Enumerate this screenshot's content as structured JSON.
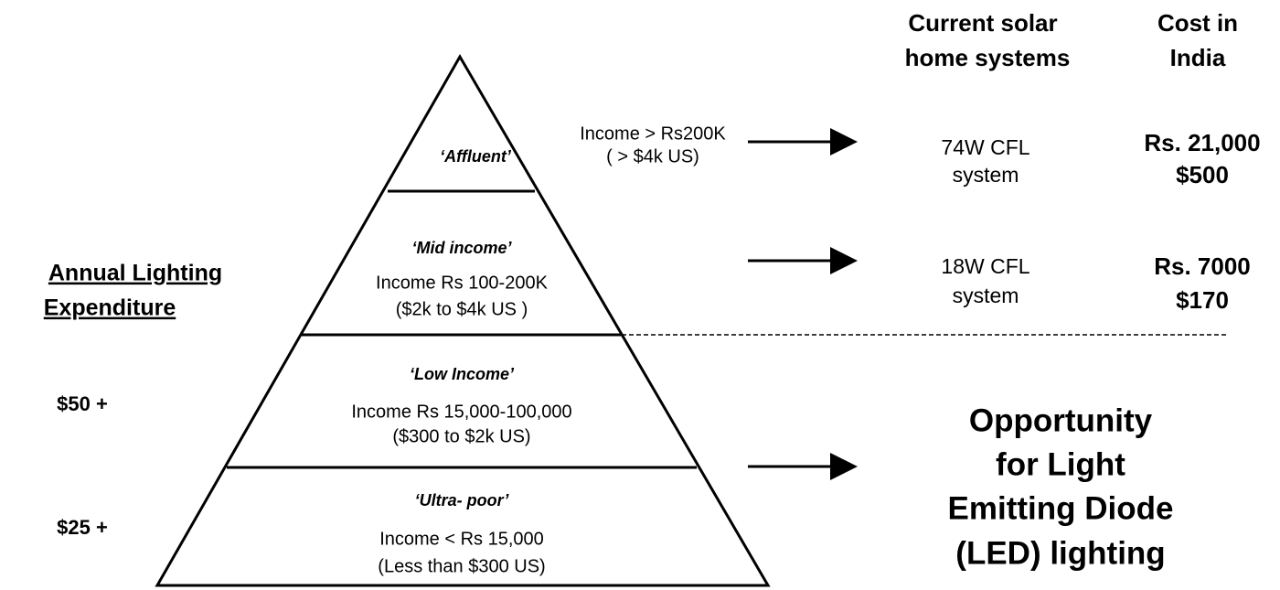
{
  "headers": {
    "system": [
      "Current solar",
      "home systems"
    ],
    "cost": [
      "Cost in",
      "India"
    ]
  },
  "levels": [
    {
      "name": "‘Affluent’",
      "income": [
        "Income > Rs200K",
        "( > $4k US)"
      ]
    },
    {
      "name": "‘Mid income’",
      "income": [
        "Income Rs 100-200K",
        "($2k to $4k US )"
      ]
    },
    {
      "name": "‘Low Income’",
      "income": [
        "Income Rs 15,000-100,000",
        "($300 to $2k US)"
      ]
    },
    {
      "name": "‘Ultra- poor’",
      "income": [
        "Income < Rs 15,000",
        "(Less than $300 US)"
      ]
    }
  ],
  "systems": [
    {
      "system": [
        "74W CFL",
        "system"
      ],
      "cost": [
        "Rs. 21,000",
        "$500"
      ]
    },
    {
      "system": [
        "18W CFL",
        "system"
      ],
      "cost": [
        "Rs. 7000",
        "$170"
      ]
    }
  ],
  "expenditure": {
    "title": [
      "Annual Lighting",
      "Expenditure"
    ],
    "values": [
      "$50 +",
      "$25 +"
    ]
  },
  "opportunity": [
    "Opportunity",
    "for Light",
    "Emitting Diode",
    "(LED) lighting"
  ]
}
